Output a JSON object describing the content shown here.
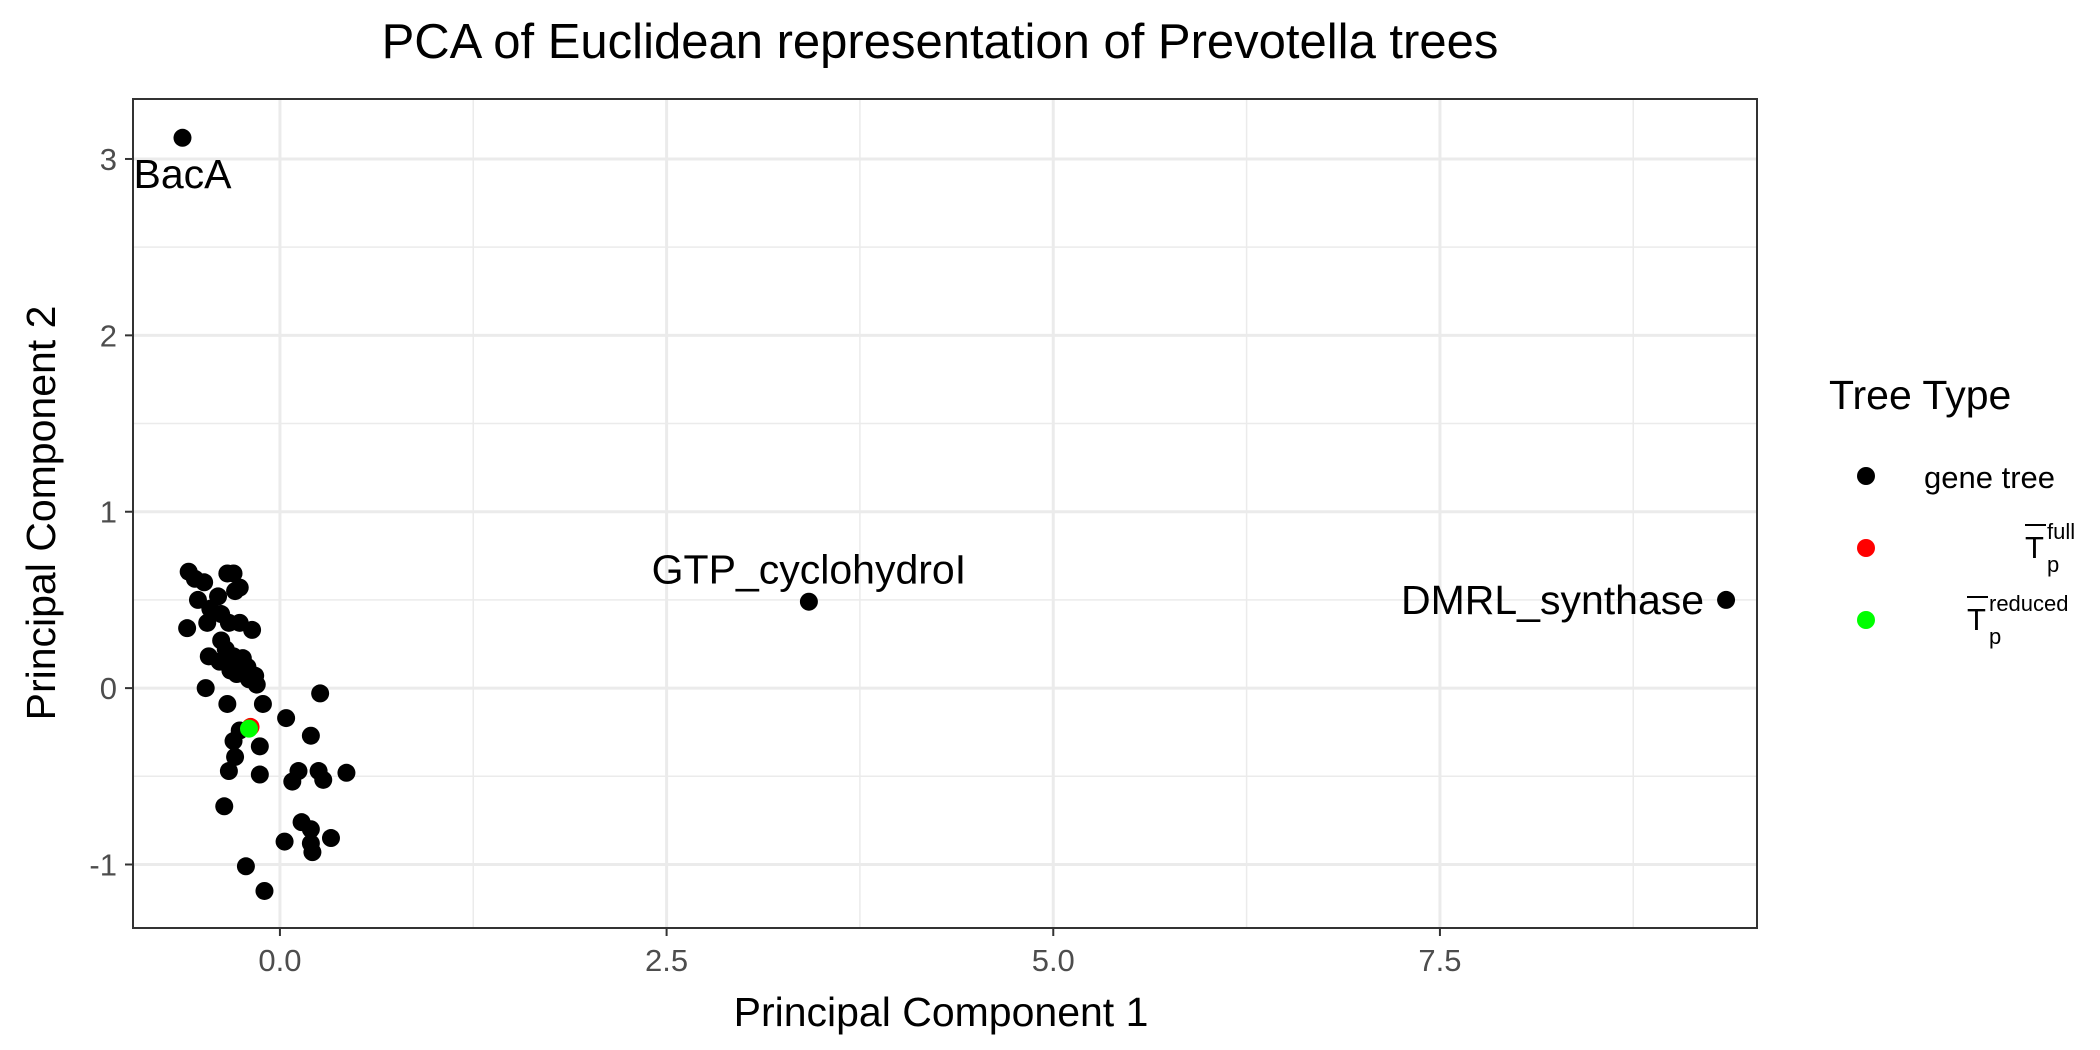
{
  "chart_data": {
    "type": "scatter",
    "title": "PCA of Euclidean representation of Prevotella trees",
    "xlabel": "Principal Component 1",
    "ylabel": "Principal Component 2",
    "xlim": [
      -0.95,
      9.55
    ],
    "ylim": [
      -1.36,
      3.34
    ],
    "x_ticks": [
      0.0,
      2.5,
      5.0,
      7.5
    ],
    "x_tick_labels": [
      "0.0",
      "2.5",
      "5.0",
      "7.5"
    ],
    "y_ticks": [
      -1,
      0,
      1,
      2,
      3
    ],
    "y_tick_labels": [
      "-1",
      "0",
      "1",
      "2",
      "3"
    ],
    "grid": true,
    "legend": {
      "title": "Tree Type",
      "position": "right",
      "entries": [
        {
          "label": "gene tree",
          "color": "#000000"
        },
        {
          "label_base": "T",
          "label_sub": "p",
          "label_sup": "full",
          "color": "#ff0000"
        },
        {
          "label_base": "T",
          "label_sub": "p",
          "label_sup": "reduced",
          "color": "#00ff00"
        }
      ]
    },
    "series": [
      {
        "name": "gene tree",
        "color": "#000000",
        "points": [
          [
            -0.63,
            3.12
          ],
          [
            3.42,
            0.49
          ],
          [
            9.35,
            0.5
          ],
          [
            -0.59,
            0.66
          ],
          [
            -0.55,
            0.62
          ],
          [
            -0.49,
            0.6
          ],
          [
            -0.53,
            0.5
          ],
          [
            -0.45,
            0.45
          ],
          [
            -0.38,
            0.42
          ],
          [
            -0.34,
            0.65
          ],
          [
            -0.3,
            0.65
          ],
          [
            -0.29,
            0.55
          ],
          [
            -0.26,
            0.57
          ],
          [
            -0.4,
            0.52
          ],
          [
            -0.47,
            0.37
          ],
          [
            -0.33,
            0.37
          ],
          [
            -0.26,
            0.37
          ],
          [
            -0.6,
            0.34
          ],
          [
            -0.18,
            0.33
          ],
          [
            -0.38,
            0.27
          ],
          [
            -0.35,
            0.22
          ],
          [
            -0.46,
            0.18
          ],
          [
            -0.39,
            0.15
          ],
          [
            -0.3,
            0.18
          ],
          [
            -0.24,
            0.17
          ],
          [
            -0.28,
            0.08
          ],
          [
            -0.21,
            0.12
          ],
          [
            -0.32,
            0.1
          ],
          [
            -0.2,
            0.05
          ],
          [
            -0.16,
            0.07
          ],
          [
            -0.15,
            0.02
          ],
          [
            -0.48,
            0.0
          ],
          [
            -0.34,
            -0.09
          ],
          [
            -0.11,
            -0.09
          ],
          [
            0.26,
            -0.03
          ],
          [
            0.04,
            -0.17
          ],
          [
            0.2,
            -0.27
          ],
          [
            -0.26,
            -0.24
          ],
          [
            -0.3,
            -0.3
          ],
          [
            -0.29,
            -0.39
          ],
          [
            -0.13,
            -0.33
          ],
          [
            -0.33,
            -0.47
          ],
          [
            -0.13,
            -0.49
          ],
          [
            0.12,
            -0.47
          ],
          [
            0.08,
            -0.53
          ],
          [
            0.25,
            -0.47
          ],
          [
            0.28,
            -0.52
          ],
          [
            0.43,
            -0.48
          ],
          [
            -0.36,
            -0.67
          ],
          [
            0.14,
            -0.76
          ],
          [
            0.2,
            -0.8
          ],
          [
            0.33,
            -0.85
          ],
          [
            0.03,
            -0.87
          ],
          [
            0.2,
            -0.88
          ],
          [
            0.21,
            -0.93
          ],
          [
            -0.22,
            -1.01
          ],
          [
            -0.1,
            -1.15
          ]
        ]
      },
      {
        "name": "T_p full",
        "color": "#ff0000",
        "points": [
          [
            -0.19,
            -0.22
          ]
        ]
      },
      {
        "name": "T_p reduced",
        "color": "#00ff00",
        "points": [
          [
            -0.2,
            -0.23
          ]
        ]
      }
    ],
    "annotations": [
      {
        "text": "BacA",
        "x": -0.63,
        "y": 3.12,
        "anchor": "below"
      },
      {
        "text": "GTP_cyclohydroI",
        "x": 3.42,
        "y": 0.49,
        "anchor": "above"
      },
      {
        "text": "DMRL_synthase",
        "x": 9.35,
        "y": 0.5,
        "anchor": "left"
      }
    ]
  }
}
